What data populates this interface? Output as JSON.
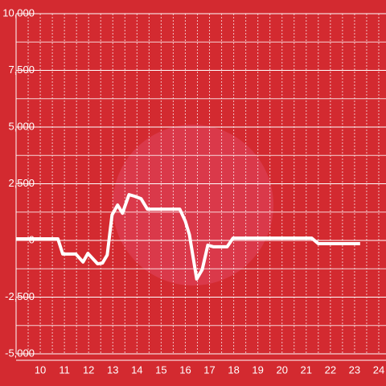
{
  "chart_data": {
    "type": "line",
    "x": [
      9.0,
      10.73,
      10.93,
      11.47,
      11.77,
      11.97,
      12.37,
      12.57,
      12.77,
      12.97,
      13.2,
      13.4,
      13.67,
      13.9,
      14.17,
      14.43,
      15.77,
      16.0,
      16.17,
      16.47,
      16.7,
      16.93,
      17.17,
      17.73,
      17.97,
      21.23,
      21.5,
      23.23
    ],
    "series": [
      {
        "color": "#ffffff",
        "values": [
          70,
          70,
          -600,
          -600,
          -950,
          -570,
          -1030,
          -1000,
          -640,
          1130,
          1560,
          1200,
          2020,
          1950,
          1840,
          1380,
          1380,
          850,
          250,
          -1700,
          -1280,
          -210,
          -280,
          -280,
          100,
          100,
          -140,
          -140
        ]
      }
    ],
    "xlim": [
      9.0,
      24.3
    ],
    "xticks": [
      10,
      11,
      12,
      13,
      14,
      15,
      16,
      17,
      18,
      19,
      20,
      21,
      22,
      23,
      24
    ],
    "xminor": [
      9.5,
      10.5,
      11.5,
      12.5,
      13.5,
      14.5,
      15.5,
      16.5,
      17.5,
      18.5,
      19.5,
      20.5,
      21.5,
      22.5,
      23.5
    ],
    "ylim": [
      -5000,
      10000
    ],
    "yticks": [
      {
        "value": -5000,
        "label": "-5,000"
      },
      {
        "value": -2500,
        "label": "-2,500"
      },
      0,
      {
        "value": 2500,
        "label": "2,500"
      },
      {
        "value": 5000,
        "label": "5,000"
      },
      {
        "value": 7500,
        "label": "7,500"
      },
      {
        "value": 10000,
        "label": "10,000"
      }
    ],
    "yminor": [
      -3750,
      -1250,
      1250,
      3750,
      6250,
      8750
    ],
    "grid": true
  }
}
